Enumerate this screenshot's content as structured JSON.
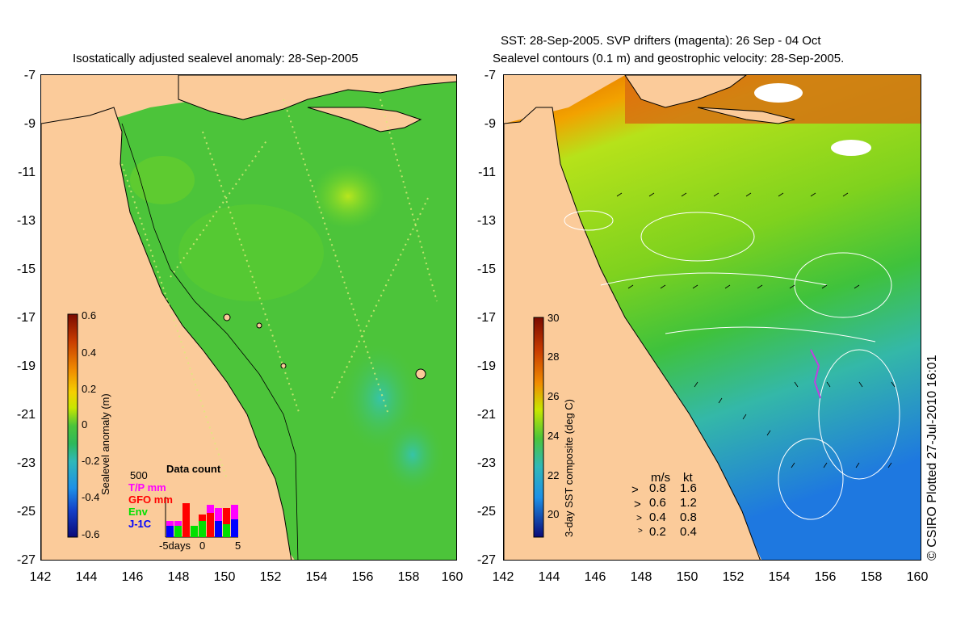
{
  "left": {
    "title": "Isostatically adjusted sealevel anomaly: 28-Sep-2005",
    "colorbar": {
      "label": "Sealevel anomaly (m)",
      "ticks": [
        "0.6",
        "0.4",
        "0.2",
        "0",
        "-0.2",
        "-0.4",
        "-0.6"
      ],
      "colors": [
        "#7a0a00",
        "#c83c00",
        "#f08c00",
        "#f5d000",
        "#c8e600",
        "#5ad020",
        "#2eb85a",
        "#30b8b8",
        "#1e90e6",
        "#1440c8",
        "#0a0a78"
      ]
    },
    "data_count": {
      "title": "Data count",
      "scale_label": "500",
      "series": [
        {
          "name": "T/P mm",
          "color": "#ff00ff"
        },
        {
          "name": "GFO mm",
          "color": "#ff0000"
        },
        {
          "name": "Env",
          "color": "#00e000"
        },
        {
          "name": "J-1C",
          "color": "#0000ff"
        }
      ],
      "x_labels": [
        "-5days",
        "0",
        "5"
      ]
    }
  },
  "right": {
    "title_line1": "SST: 28-Sep-2005. SVP drifters (magenta): 26 Sep - 04 Oct",
    "title_line2": "Sealevel contours (0.1 m) and geostrophic velocity: 28-Sep-2005.",
    "colorbar": {
      "label": "3-day SST composite (deg C)",
      "ticks": [
        "30",
        "28",
        "26",
        "24",
        "22",
        "20"
      ],
      "colors": [
        "#7a0a00",
        "#c83c00",
        "#f08c00",
        "#f5d000",
        "#c8e600",
        "#5ad020",
        "#2eb85a",
        "#30b8b8",
        "#1e90e6",
        "#1440c8",
        "#0a0a78"
      ]
    },
    "velocity_key": {
      "header_ms": "m/s",
      "header_kt": "kt",
      "rows": [
        {
          "ms": "0.8",
          "kt": "1.6"
        },
        {
          "ms": "0.6",
          "kt": "1.2"
        },
        {
          "ms": "0.4",
          "kt": "0.8"
        },
        {
          "ms": "0.2",
          "kt": "0.4"
        }
      ]
    }
  },
  "axes": {
    "y_ticks": [
      "-7",
      "-9",
      "-11",
      "-13",
      "-15",
      "-17",
      "-19",
      "-21",
      "-23",
      "-25",
      "-27"
    ],
    "x_ticks": [
      "142",
      "144",
      "146",
      "148",
      "150",
      "152",
      "154",
      "156",
      "158",
      "160"
    ]
  },
  "credit": "© CSIRO Plotted 27-Jul-2010 16:01",
  "colors": {
    "land": "#fbcb9a",
    "sea_left": "#4cc43a",
    "sea_right_warm": "#7fd21e"
  }
}
